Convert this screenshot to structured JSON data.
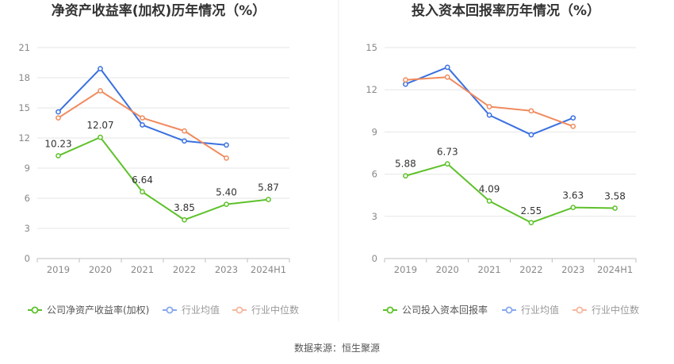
{
  "source": "数据来源：恒生聚源",
  "colors": {
    "company": "#5ec12a",
    "industry_avg": "#3a70e0",
    "industry_median": "#f08a5d",
    "grid": "#e6e6e6",
    "axis": "#bfbfbf"
  },
  "chart_data": [
    {
      "type": "line",
      "title": "净资产收益率(加权)历年情况（%）",
      "categories": [
        "2019",
        "2020",
        "2021",
        "2022",
        "2023",
        "2024H1"
      ],
      "ylim": [
        0,
        21
      ],
      "yticks": [
        0,
        3,
        6,
        9,
        12,
        15,
        18,
        21
      ],
      "grid": true,
      "legend_position": "bottom-left",
      "series": [
        {
          "name": "公司净资产收益率(加权)",
          "values": [
            10.23,
            12.07,
            6.64,
            3.85,
            5.4,
            5.87
          ],
          "labels": [
            "10.23",
            "12.07",
            "6.64",
            "3.85",
            "5.40",
            "5.87"
          ]
        },
        {
          "name": "行业均值",
          "values": [
            14.6,
            18.9,
            13.3,
            11.7,
            11.3,
            null
          ]
        },
        {
          "name": "行业中位数",
          "values": [
            14.0,
            16.7,
            14.0,
            12.7,
            10.0,
            null
          ]
        }
      ]
    },
    {
      "type": "line",
      "title": "投入资本回报率历年情况（%）",
      "categories": [
        "2019",
        "2020",
        "2021",
        "2022",
        "2023",
        "2024H1"
      ],
      "ylim": [
        0,
        15
      ],
      "yticks": [
        0,
        3,
        6,
        9,
        12,
        15
      ],
      "grid": true,
      "legend_position": "bottom-left",
      "series": [
        {
          "name": "公司投入资本回报率",
          "values": [
            5.88,
            6.73,
            4.09,
            2.55,
            3.63,
            3.58
          ],
          "labels": [
            "5.88",
            "6.73",
            "4.09",
            "2.55",
            "3.63",
            "3.58"
          ]
        },
        {
          "name": "行业均值",
          "values": [
            12.4,
            13.6,
            10.2,
            8.8,
            10.0,
            null
          ]
        },
        {
          "name": "行业中位数",
          "values": [
            12.7,
            12.9,
            10.8,
            10.5,
            9.4,
            null
          ]
        }
      ]
    }
  ]
}
